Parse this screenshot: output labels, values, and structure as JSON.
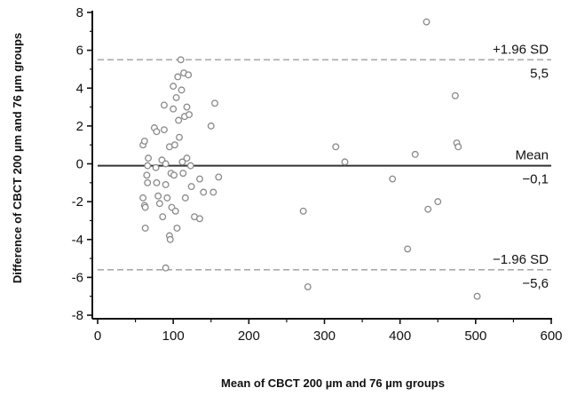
{
  "chart_data": {
    "type": "scatter",
    "xlabel": "Mean of CBCT 200 µm and 76 µm groups",
    "ylabel": "Difference of CBCT 200 µm and 76 µm groups",
    "xlim": [
      0,
      600
    ],
    "ylim": [
      -8,
      8
    ],
    "xticks": [
      "0",
      "100",
      "200",
      "300",
      "400",
      "500",
      "600"
    ],
    "yticks": [
      "-8",
      "-6",
      "-4",
      "-2",
      "0",
      "2",
      "4",
      "6",
      "8"
    ],
    "grid": false,
    "lines": [
      {
        "name": "upper",
        "label_top": "+1.96 SD",
        "label_bottom": "5,5",
        "y": 5.5,
        "style": "dashed",
        "color": "#aaaaaa"
      },
      {
        "name": "mean",
        "label_top": "Mean",
        "label_bottom": "−0,1",
        "y": -0.1,
        "style": "solid",
        "color": "#333333"
      },
      {
        "name": "lower",
        "label_top": "−1.96 SD",
        "label_bottom": "−5,6",
        "y": -5.6,
        "style": "dashed",
        "color": "#aaaaaa"
      }
    ],
    "points": [
      {
        "x": 60,
        "y": 1.0
      },
      {
        "x": 62,
        "y": 1.2
      },
      {
        "x": 60,
        "y": -1.8
      },
      {
        "x": 62,
        "y": -2.2
      },
      {
        "x": 63,
        "y": -3.4
      },
      {
        "x": 65,
        "y": -0.6
      },
      {
        "x": 66,
        "y": -0.1
      },
      {
        "x": 67,
        "y": 0.3
      },
      {
        "x": 66,
        "y": -1.0
      },
      {
        "x": 63,
        "y": -2.3
      },
      {
        "x": 75,
        "y": 1.9
      },
      {
        "x": 78,
        "y": 1.7
      },
      {
        "x": 77,
        "y": -0.2
      },
      {
        "x": 78,
        "y": -1.0
      },
      {
        "x": 80,
        "y": -1.7
      },
      {
        "x": 82,
        "y": -2.1
      },
      {
        "x": 85,
        "y": 0.2
      },
      {
        "x": 86,
        "y": -2.8
      },
      {
        "x": 88,
        "y": 3.1
      },
      {
        "x": 88,
        "y": 1.8
      },
      {
        "x": 90,
        "y": -1.1
      },
      {
        "x": 90,
        "y": 0.0
      },
      {
        "x": 92,
        "y": -1.8
      },
      {
        "x": 95,
        "y": -3.8
      },
      {
        "x": 96,
        "y": -4.0
      },
      {
        "x": 95,
        "y": 0.9
      },
      {
        "x": 97,
        "y": -0.5
      },
      {
        "x": 98,
        "y": -2.3
      },
      {
        "x": 100,
        "y": 2.9
      },
      {
        "x": 100,
        "y": 4.1
      },
      {
        "x": 101,
        "y": -0.6
      },
      {
        "x": 102,
        "y": 1.0
      },
      {
        "x": 103,
        "y": -2.5
      },
      {
        "x": 104,
        "y": 3.5
      },
      {
        "x": 105,
        "y": -3.4
      },
      {
        "x": 106,
        "y": 4.6
      },
      {
        "x": 107,
        "y": 2.3
      },
      {
        "x": 108,
        "y": 1.4
      },
      {
        "x": 110,
        "y": 5.5
      },
      {
        "x": 111,
        "y": 3.9
      },
      {
        "x": 112,
        "y": 0.1
      },
      {
        "x": 113,
        "y": -0.5
      },
      {
        "x": 114,
        "y": 4.8
      },
      {
        "x": 115,
        "y": 2.5
      },
      {
        "x": 116,
        "y": -1.8
      },
      {
        "x": 118,
        "y": 3.0
      },
      {
        "x": 118,
        "y": 0.3
      },
      {
        "x": 120,
        "y": 4.7
      },
      {
        "x": 121,
        "y": 2.6
      },
      {
        "x": 123,
        "y": -0.1
      },
      {
        "x": 124,
        "y": -1.2
      },
      {
        "x": 128,
        "y": -2.8
      },
      {
        "x": 135,
        "y": -2.9
      },
      {
        "x": 135,
        "y": -0.8
      },
      {
        "x": 140,
        "y": -1.5
      },
      {
        "x": 150,
        "y": 2.0
      },
      {
        "x": 153,
        "y": -1.5
      },
      {
        "x": 155,
        "y": 3.2
      },
      {
        "x": 160,
        "y": -0.7
      },
      {
        "x": 90,
        "y": -5.5
      },
      {
        "x": 272,
        "y": -2.5
      },
      {
        "x": 278,
        "y": -6.5
      },
      {
        "x": 315,
        "y": 0.9
      },
      {
        "x": 327,
        "y": 0.1
      },
      {
        "x": 390,
        "y": -0.8
      },
      {
        "x": 410,
        "y": -4.5
      },
      {
        "x": 420,
        "y": 0.5
      },
      {
        "x": 435,
        "y": 7.5
      },
      {
        "x": 437,
        "y": -2.4
      },
      {
        "x": 450,
        "y": -2.0
      },
      {
        "x": 473,
        "y": 3.6
      },
      {
        "x": 475,
        "y": 1.1
      },
      {
        "x": 477,
        "y": 0.9
      },
      {
        "x": 502,
        "y": -7.0
      }
    ]
  }
}
